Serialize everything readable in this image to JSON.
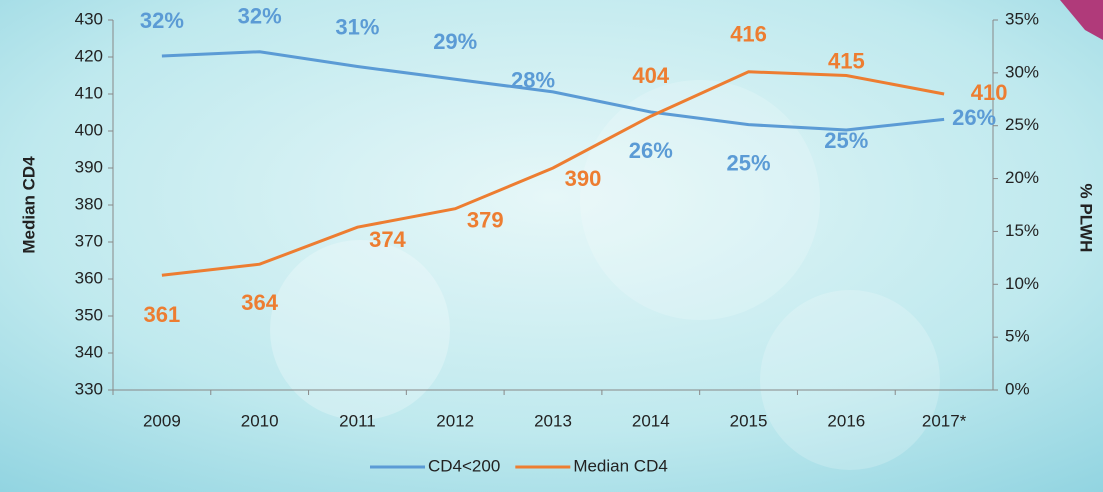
{
  "chart_data": {
    "type": "line",
    "categories": [
      "2009",
      "2010",
      "2011",
      "2012",
      "2013",
      "2014",
      "2015",
      "2016",
      "2017*"
    ],
    "series": [
      {
        "name": "CD4<200",
        "color": "#5b9bd5",
        "axis": "y2",
        "values": [
          31.6,
          32.0,
          30.6,
          29.4,
          28.2,
          26.3,
          25.1,
          24.6,
          25.6
        ],
        "value_labels": [
          "32%",
          "32%",
          "31%",
          "29%",
          "28%",
          "26%",
          "25%",
          "25%",
          "26%"
        ]
      },
      {
        "name": "Median CD4",
        "color": "#ed7d31",
        "values": [
          361,
          364,
          374,
          379,
          390,
          404,
          416,
          415,
          410
        ]
      }
    ],
    "ylabel": "Median CD4",
    "y2label": "% PLWH",
    "ylim": [
      330,
      430
    ],
    "yticks": [
      330,
      340,
      350,
      360,
      370,
      380,
      390,
      400,
      410,
      420,
      430
    ],
    "y2lim": [
      0,
      35
    ],
    "y2ticks": [
      {
        "value": 0,
        "label": "0%"
      },
      {
        "value": 5,
        "label": "5%"
      },
      {
        "value": 10,
        "label": "10%"
      },
      {
        "value": 15,
        "label": "15%"
      },
      {
        "value": 20,
        "label": "20%"
      },
      {
        "value": 25,
        "label": "25%"
      },
      {
        "value": 30,
        "label": "30%"
      },
      {
        "value": 35,
        "label": "35%"
      }
    ],
    "legend": "bottom"
  }
}
